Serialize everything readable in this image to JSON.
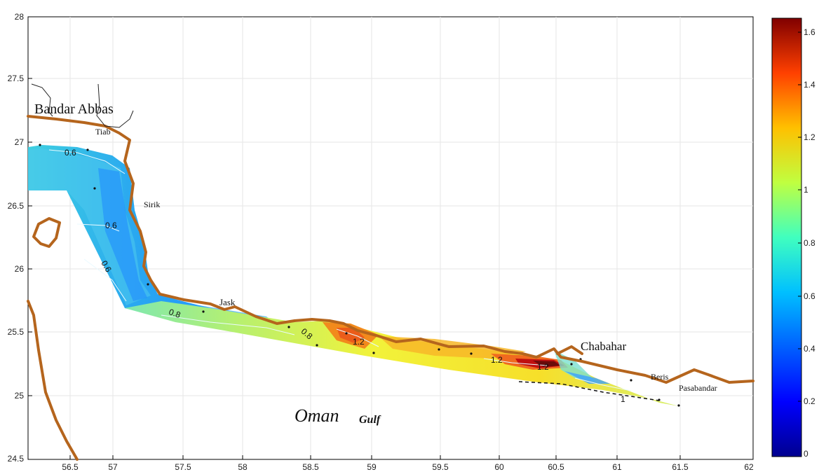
{
  "map": {
    "x_ticks": [
      "56.5",
      "57",
      "57.5",
      "58",
      "58.5",
      "59",
      "59.5",
      "60",
      "60.5",
      "61",
      "61.5",
      "62"
    ],
    "y_ticks": [
      "28",
      "27.5",
      "27",
      "26.5",
      "26",
      "25.5",
      "25",
      "24.5"
    ],
    "places": {
      "bandar_abbas": "Bandar Abbas",
      "tiab": "Tiab",
      "sirik": "Sirik",
      "jask": "Jask",
      "chabahar": "Chabahar",
      "beris": "Beris",
      "pasabandar": "Pasabandar",
      "oman": "Oman",
      "gulf": "Gulf"
    },
    "contours": [
      "0.6",
      "0.6",
      "0.6",
      "0.8",
      "0.8",
      "1.2",
      "1.2",
      "1.2",
      "1"
    ],
    "coast_color": "#b5651d",
    "scale_colors": [
      "#00008f",
      "#0000ff",
      "#0080ff",
      "#00ffff",
      "#80ff80",
      "#ffff00",
      "#ff8000",
      "#ff0000",
      "#800000"
    ]
  },
  "colorbar": {
    "ticks": [
      "1.6",
      "1.4",
      "1.2",
      "1",
      "0.8",
      "0.6",
      "0.4",
      "0.2",
      "0"
    ]
  }
}
